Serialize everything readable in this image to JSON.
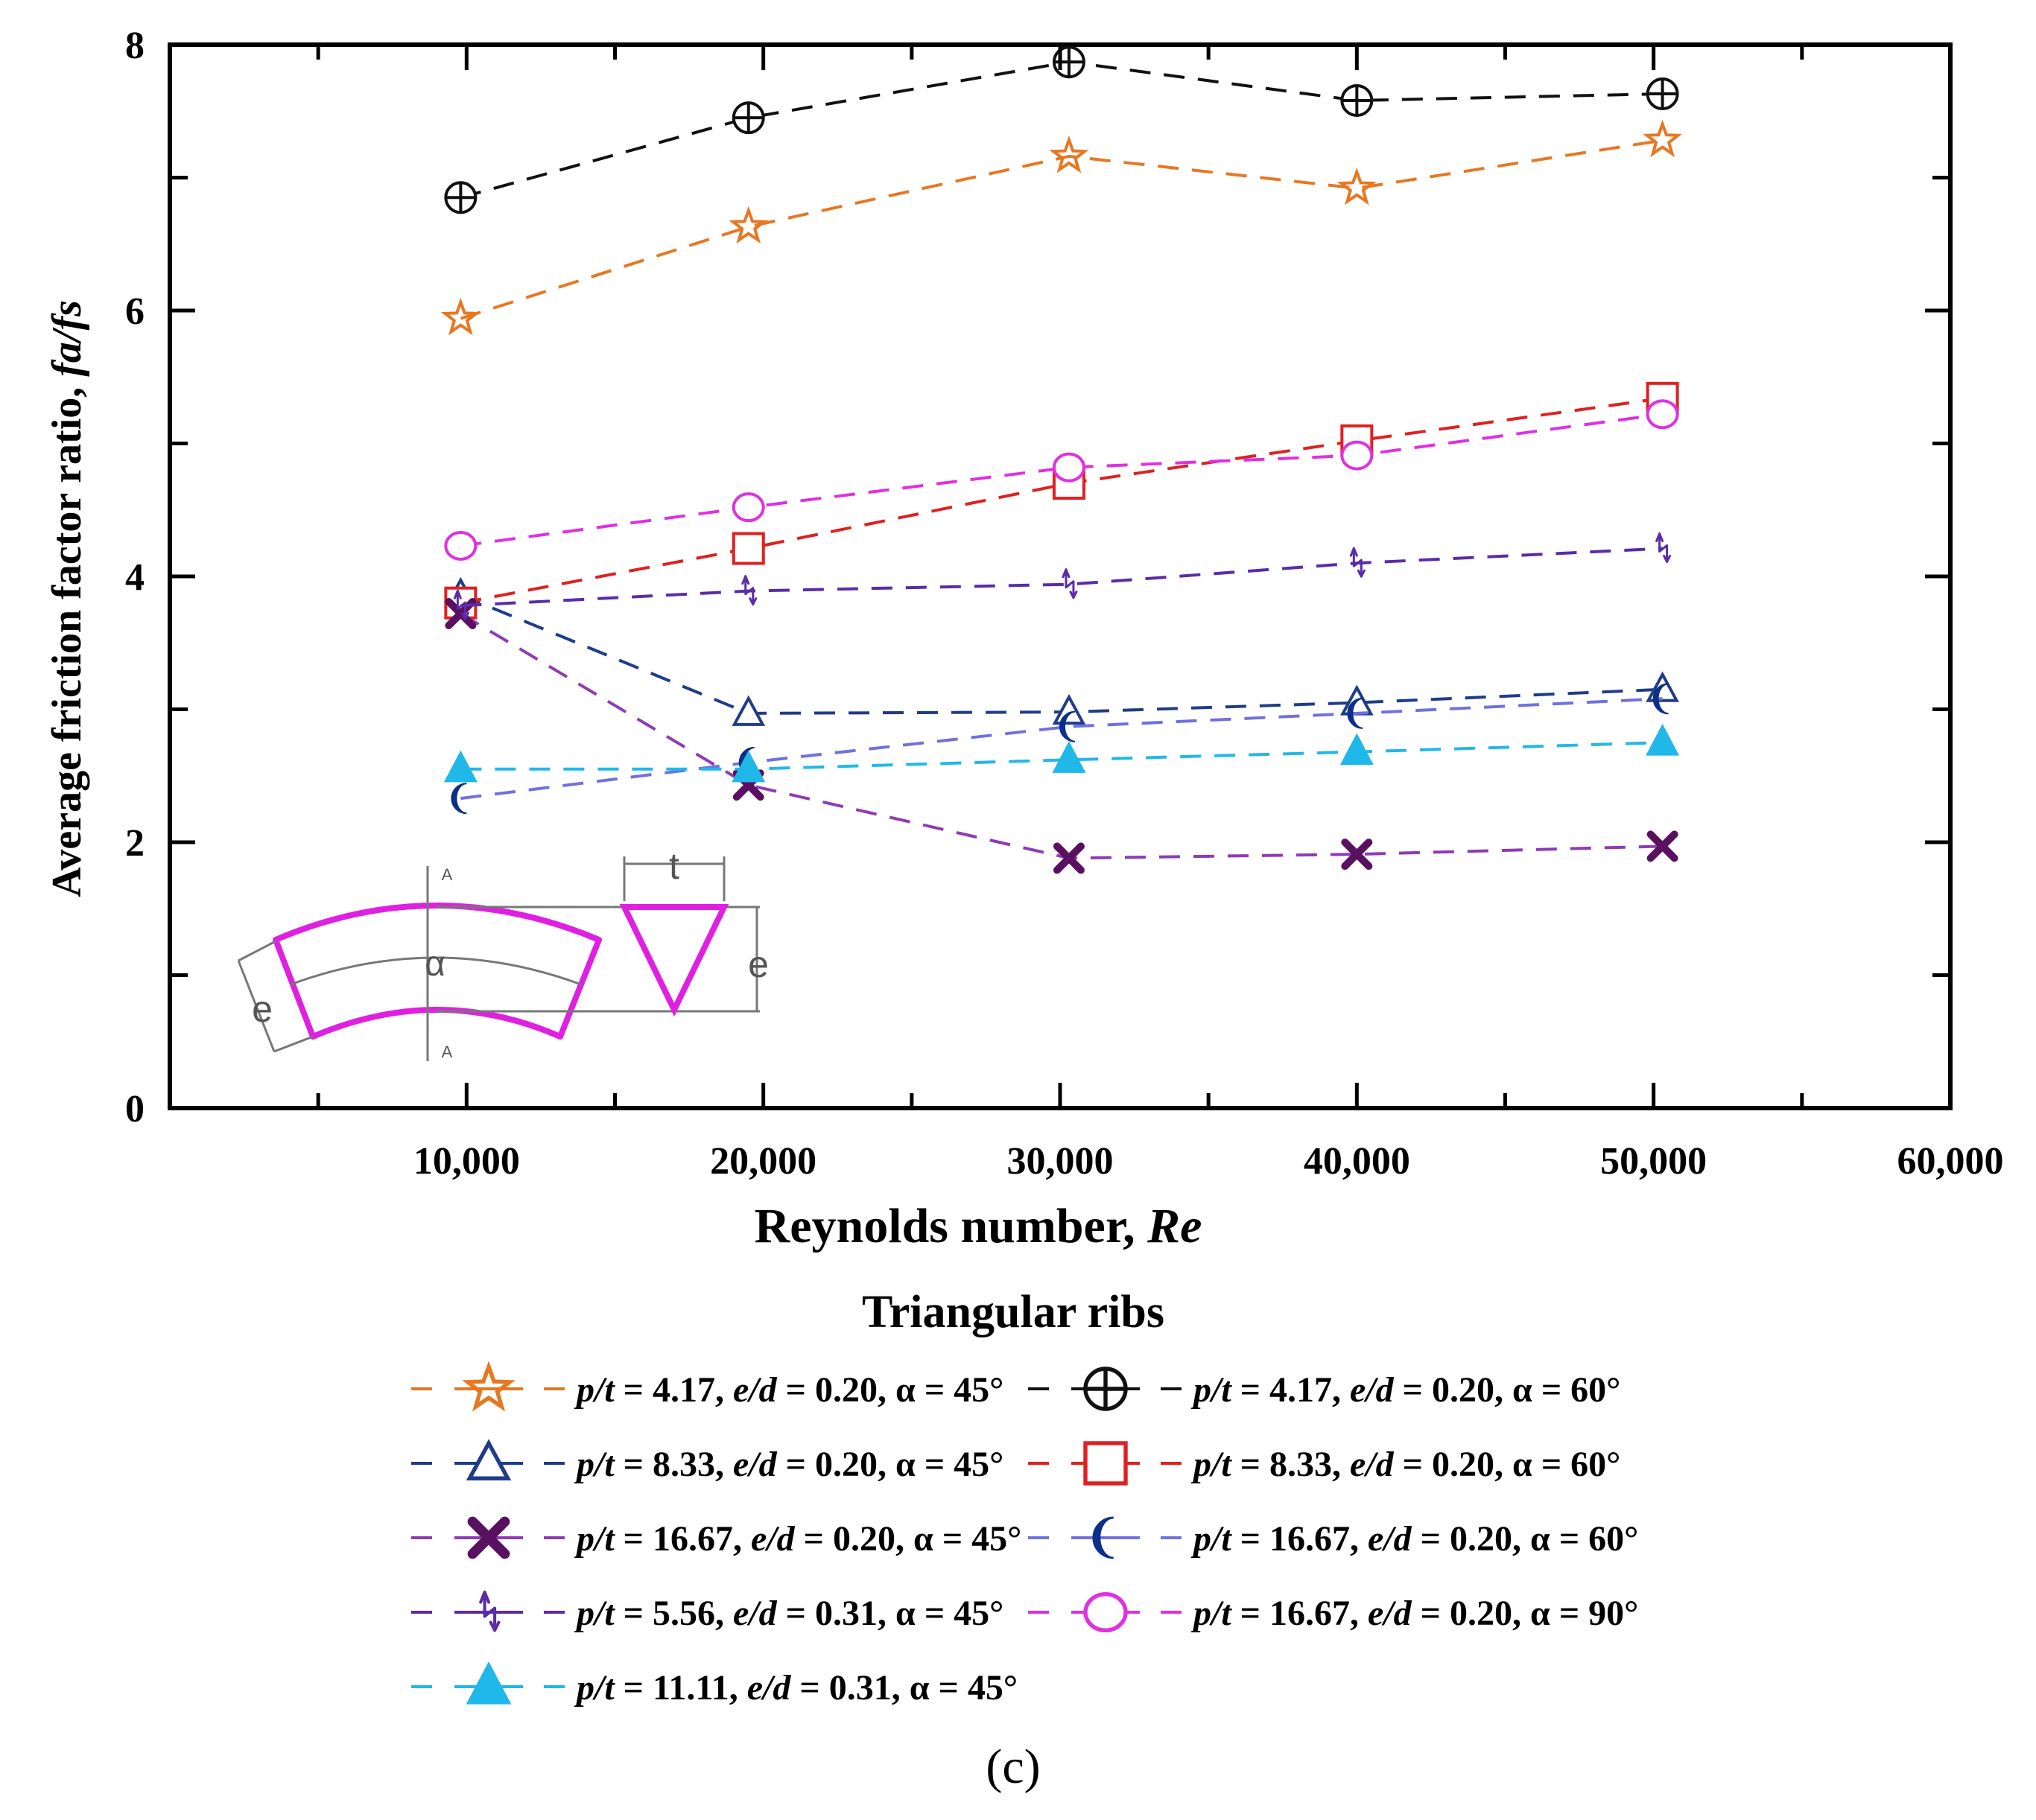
{
  "chart_data": {
    "type": "line",
    "xlabel": "Reynolds number, ",
    "xlabel_italic": "Re",
    "ylabel": "Average friction factor ratio, ",
    "ylabel_italic": "fa/fs",
    "xlim": [
      0,
      60000
    ],
    "ylim": [
      0,
      8
    ],
    "x_ticks": [
      10000,
      20000,
      30000,
      40000,
      50000,
      60000
    ],
    "x_tick_labels": [
      "10,000",
      "20,000",
      "30,000",
      "40,000",
      "50,000",
      "60,000"
    ],
    "y_ticks": [
      0,
      2,
      4,
      6,
      8
    ],
    "y_tick_labels": [
      "0",
      "2",
      "4",
      "6",
      "8"
    ],
    "legend_title": "Triangular ribs",
    "subfigure_label": "(c)",
    "series": [
      {
        "name": "p/t = 4.17, e/d = 0.20, α = 45°",
        "p_t": "4.17",
        "e_d": "0.20",
        "alpha": "45°",
        "color": "#E87722",
        "marker": "star",
        "x": [
          9800,
          19500,
          30300,
          40000,
          50300
        ],
        "values": [
          5.94,
          6.63,
          7.16,
          6.92,
          7.28
        ]
      },
      {
        "name": "p/t = 4.17, e/d = 0.20, α = 60°",
        "p_t": "4.17",
        "e_d": "0.20",
        "alpha": "60°",
        "color": "#111111",
        "marker": "crossed-circle",
        "x": [
          9800,
          19500,
          30300,
          40000,
          50300
        ],
        "values": [
          6.85,
          7.45,
          7.87,
          7.58,
          7.63
        ]
      },
      {
        "name": "p/t = 8.33, e/d = 0.20, α = 45°",
        "p_t": "8.33",
        "e_d": "0.20",
        "alpha": "45°",
        "color": "#1F3C88",
        "marker": "triangle-open",
        "x": [
          9800,
          19500,
          30300,
          40000,
          50300
        ],
        "values": [
          3.86,
          2.97,
          2.98,
          3.05,
          3.15
        ]
      },
      {
        "name": "p/t = 8.33, e/d = 0.20, α = 60°",
        "p_t": "8.33",
        "e_d": "0.20",
        "alpha": "60°",
        "color": "#E02020",
        "marker": "square-open",
        "x": [
          9800,
          19500,
          30300,
          40000,
          50300
        ],
        "values": [
          3.8,
          4.21,
          4.7,
          5.02,
          5.34
        ]
      },
      {
        "name": "p/t = 16.67, e/d = 0.20, α = 45°",
        "p_t": "16.67",
        "e_d": "0.20",
        "alpha": "45°",
        "color": "#5A1060",
        "marker": "x-bold",
        "line_color": "#8E3BB5",
        "x": [
          9800,
          19500,
          30300,
          40000,
          50300
        ],
        "values": [
          3.72,
          2.43,
          1.88,
          1.91,
          1.97
        ]
      },
      {
        "name": "p/t = 16.67, e/d = 0.20, α = 60°",
        "p_t": "16.67",
        "e_d": "0.20",
        "alpha": "60°",
        "color": "#0B2F8A",
        "marker": "crescent",
        "line_color": "#7070E0",
        "x": [
          9800,
          19500,
          30300,
          40000,
          50300
        ],
        "values": [
          2.33,
          2.6,
          2.87,
          2.97,
          3.08
        ]
      },
      {
        "name": "p/t = 5.56, e/d = 0.31, α = 45°",
        "p_t": "5.56",
        "e_d": "0.31",
        "alpha": "45°",
        "color": "#5B2BA8",
        "marker": "arrow-glyph",
        "x": [
          9800,
          19500,
          30300,
          40000,
          50300
        ],
        "values": [
          3.78,
          3.89,
          3.94,
          4.1,
          4.21
        ]
      },
      {
        "name": "p/t = 16.67, e/d = 0.20, α = 90°",
        "p_t": "16.67",
        "e_d": "0.20",
        "alpha": "90°",
        "color": "#E030E0",
        "marker": "circle-open",
        "x": [
          9800,
          19500,
          30300,
          40000,
          50300
        ],
        "values": [
          4.23,
          4.52,
          4.82,
          4.91,
          5.22
        ]
      },
      {
        "name": "p/t = 11.11, e/d = 0.31, α = 45°",
        "p_t": "11.11",
        "e_d": "0.31",
        "alpha": "45°",
        "color": "#20B8E8",
        "marker": "triangle-filled",
        "x": [
          9800,
          19500,
          30300,
          40000,
          50300
        ],
        "values": [
          2.55,
          2.55,
          2.62,
          2.68,
          2.75
        ]
      }
    ],
    "legend_order": [
      0,
      1,
      2,
      3,
      4,
      5,
      6,
      7,
      8
    ],
    "inset_labels": {
      "e_left": "e",
      "alpha": "α",
      "t": "t",
      "e_right": "e",
      "section_top": "A",
      "section_bottom": "A"
    },
    "inset_color": "#E020E0"
  }
}
